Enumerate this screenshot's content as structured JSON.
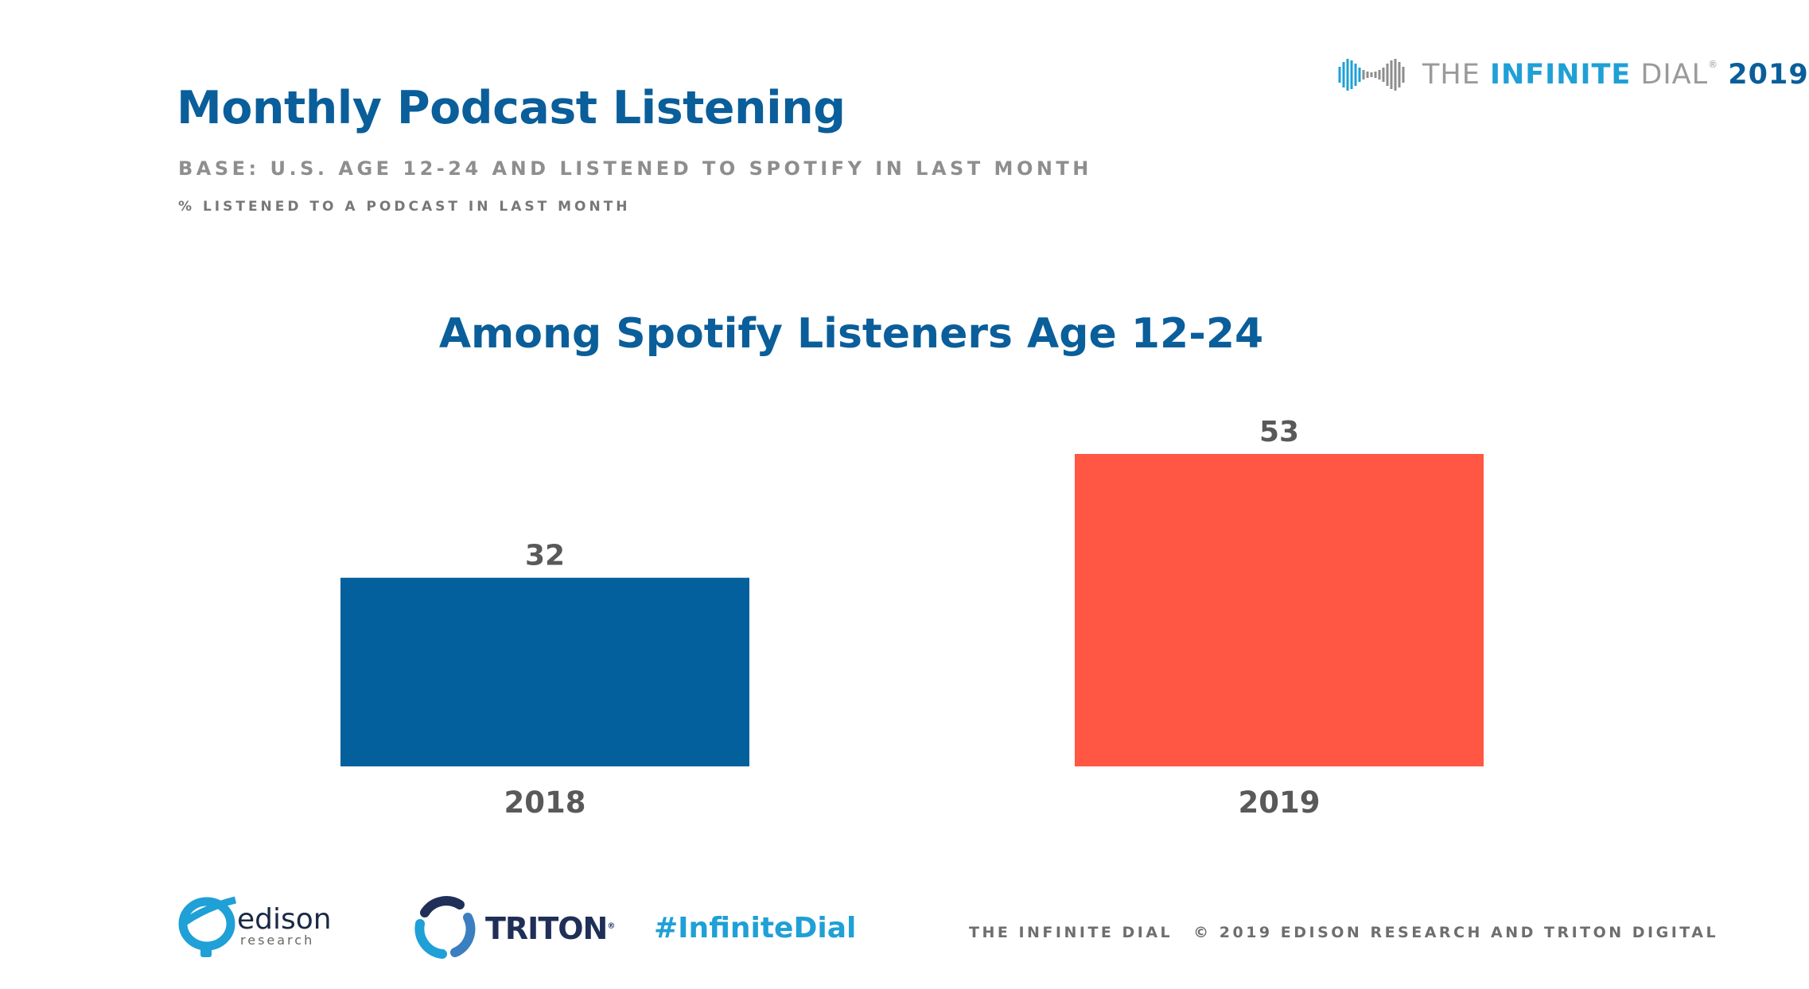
{
  "header": {
    "title": "Monthly Podcast Listening",
    "base": "BASE: U.S. AGE 12-24 AND LISTENED TO SPOTIFY IN LAST MONTH",
    "metric": "% LISTENED TO A PODCAST IN LAST MONTH"
  },
  "brand": {
    "the": "THE ",
    "infinite": "INFINITE",
    "dial": " DIAL",
    "reg": "®",
    "year": "2019"
  },
  "chart_data": {
    "type": "bar",
    "title": "Among Spotify Listeners Age 12-24",
    "categories": [
      "2018",
      "2019"
    ],
    "values": [
      32,
      53
    ],
    "colors": [
      "#04609c",
      "#ff5744"
    ],
    "xlabel": "",
    "ylabel": "",
    "ylim": [
      0,
      53
    ],
    "grid": false,
    "legend": "none"
  },
  "footer": {
    "edison_word": "edison",
    "edison_sub": "research",
    "triton_word": "TRITON",
    "triton_reg": "®",
    "hashtag": "#InfiniteDial",
    "dial_label": "THE INFINITE DIAL",
    "copyright": "© 2019 EDISON RESEARCH AND TRITON DIGITAL"
  }
}
